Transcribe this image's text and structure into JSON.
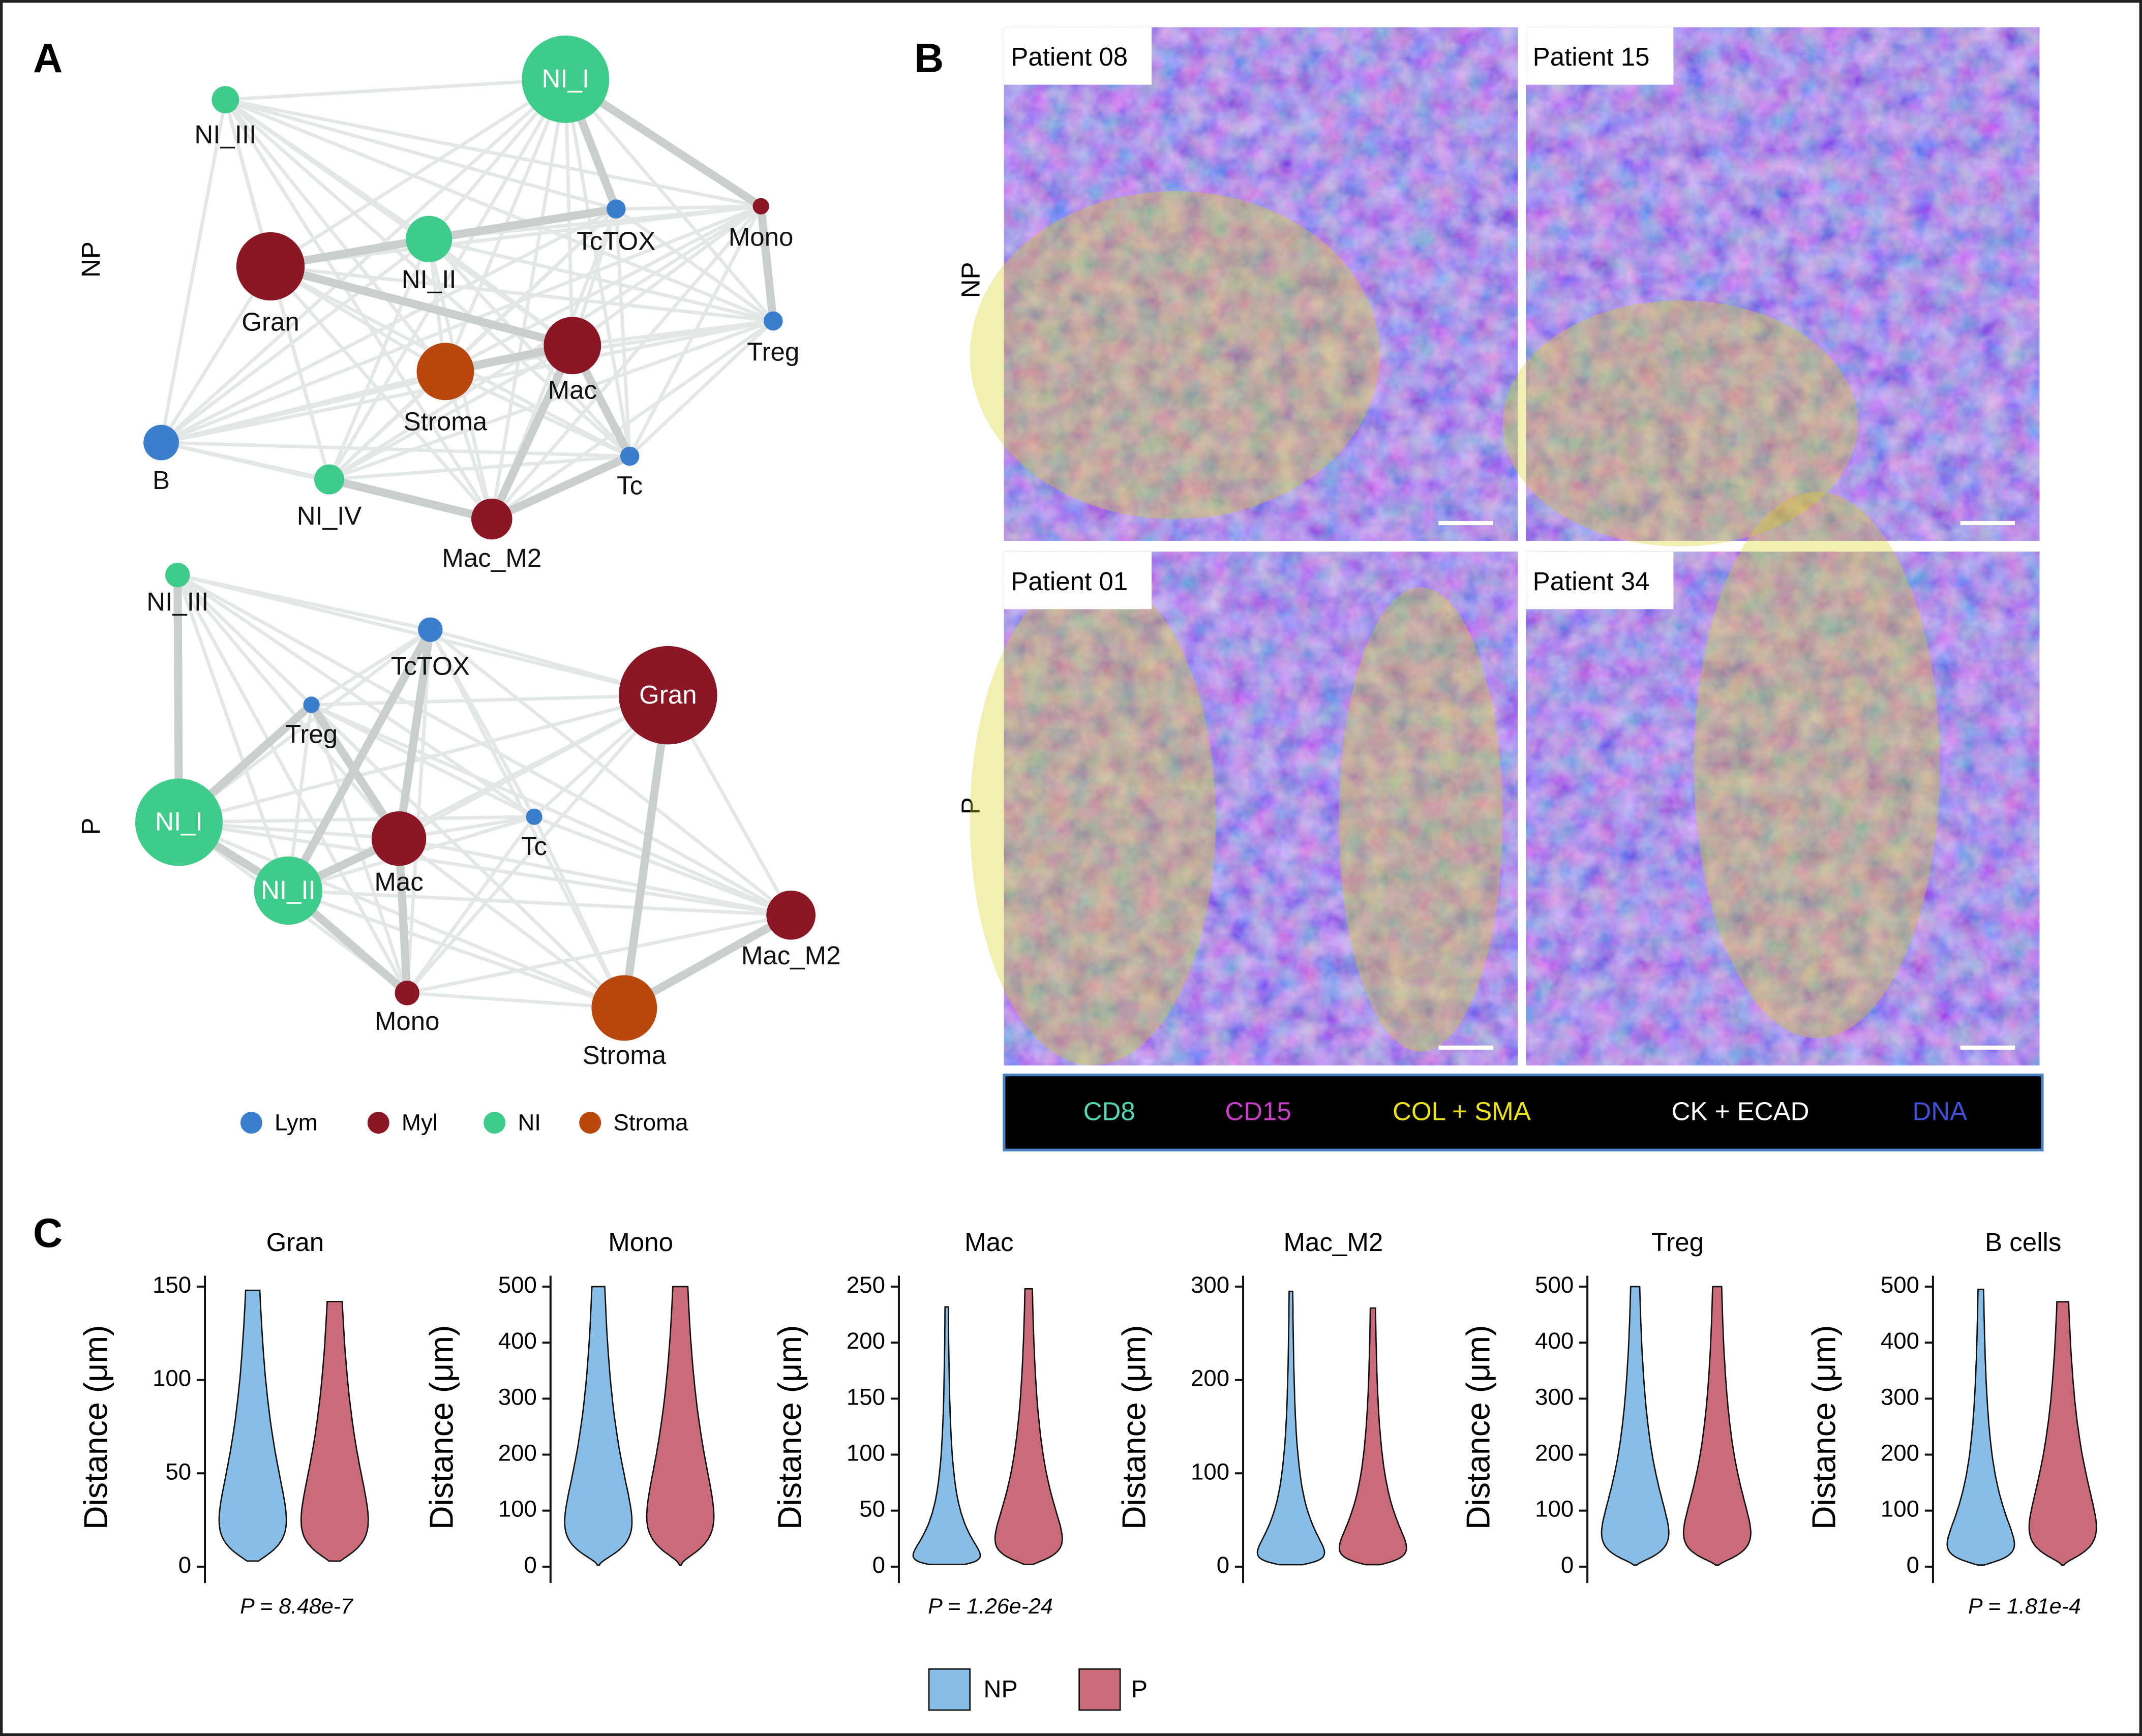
{
  "panels": {
    "a": "A",
    "b": "B",
    "c": "C"
  },
  "network": {
    "rows": [
      "NP",
      "P"
    ],
    "groups": [
      {
        "name": "Lym",
        "color": "#3b7fcc"
      },
      {
        "name": "Myl",
        "color": "#8a1626"
      },
      {
        "name": "NI",
        "color": "#3fcb8a"
      },
      {
        "name": "Stroma",
        "color": "#b8480d"
      }
    ],
    "graphs": [
      {
        "nodes": [
          {
            "label": "NI_I",
            "group": 2
          },
          {
            "label": "NI_III",
            "group": 2
          },
          {
            "label": "Gran",
            "group": 1
          },
          {
            "label": "NI_II",
            "group": 2
          },
          {
            "label": "TcTOX",
            "group": 0
          },
          {
            "label": "Mono",
            "group": 1
          },
          {
            "label": "Treg",
            "group": 0
          },
          {
            "label": "Stroma",
            "group": 3
          },
          {
            "label": "Mac",
            "group": 1
          },
          {
            "label": "B",
            "group": 0
          },
          {
            "label": "NI_IV",
            "group": 2
          },
          {
            "label": "Tc",
            "group": 0
          },
          {
            "label": "Mac_M2",
            "group": 1
          }
        ]
      },
      {
        "nodes": [
          {
            "label": "NI_III",
            "group": 2
          },
          {
            "label": "TcTOX",
            "group": 0
          },
          {
            "label": "Treg",
            "group": 0
          },
          {
            "label": "Gran",
            "group": 1
          },
          {
            "label": "NI_I",
            "group": 2
          },
          {
            "label": "Mac",
            "group": 1
          },
          {
            "label": "Tc",
            "group": 0
          },
          {
            "label": "NI_II",
            "group": 2
          },
          {
            "label": "Mac_M2",
            "group": 1
          },
          {
            "label": "Mono",
            "group": 1
          },
          {
            "label": "Stroma",
            "group": 3
          }
        ]
      }
    ]
  },
  "images": {
    "rows": [
      "NP",
      "P"
    ],
    "patients": [
      "Patient 08",
      "Patient 15",
      "Patient 01",
      "Patient 34"
    ],
    "channels": [
      {
        "name": "CD8",
        "color": "#52d6b4"
      },
      {
        "name": "CD15",
        "color": "#c63fc6"
      },
      {
        "name": "COL + SMA",
        "color": "#ece21c"
      },
      {
        "name": "CK + ECAD",
        "color": "#ffffff"
      },
      {
        "name": "DNA",
        "color": "#3f4fd6"
      }
    ]
  },
  "chart_data": [
    {
      "type": "violin",
      "title": "Gran",
      "y_label": "Distance (μm)",
      "ylim": [
        0,
        150
      ],
      "yticks": [
        0,
        50,
        100,
        150
      ],
      "p_value": "P = 8.48e-7",
      "series": [
        {
          "name": "NP",
          "color": "#88bde6",
          "min": 3,
          "median": 25,
          "max": 148
        },
        {
          "name": "P",
          "color": "#c96b78",
          "min": 3,
          "median": 25,
          "max": 142
        }
      ]
    },
    {
      "type": "violin",
      "title": "Mono",
      "y_label": "Distance (μm)",
      "ylim": [
        0,
        500
      ],
      "yticks": [
        0,
        100,
        200,
        300,
        400,
        500
      ],
      "series": [
        {
          "name": "NP",
          "color": "#88bde6",
          "min": 3,
          "median": 80,
          "max": 500
        },
        {
          "name": "P",
          "color": "#c96b78",
          "min": 3,
          "median": 90,
          "max": 500
        }
      ]
    },
    {
      "type": "violin",
      "title": "Mac",
      "y_label": "Distance (μm)",
      "ylim": [
        0,
        250
      ],
      "yticks": [
        0,
        50,
        100,
        150,
        200,
        250
      ],
      "p_value": "P = 1.26e-24",
      "series": [
        {
          "name": "NP",
          "color": "#88bde6",
          "min": 2,
          "median": 10,
          "max": 232
        },
        {
          "name": "P",
          "color": "#c96b78",
          "min": 2,
          "median": 25,
          "max": 248
        }
      ]
    },
    {
      "type": "violin",
      "title": "Mac_M2",
      "y_label": "Distance (μm)",
      "ylim": [
        0,
        300
      ],
      "yticks": [
        0,
        100,
        200,
        300
      ],
      "series": [
        {
          "name": "NP",
          "color": "#88bde6",
          "min": 2,
          "median": 15,
          "max": 295
        },
        {
          "name": "P",
          "color": "#c96b78",
          "min": 2,
          "median": 20,
          "max": 277
        }
      ]
    },
    {
      "type": "violin",
      "title": "Treg",
      "y_label": "Distance (μm)",
      "ylim": [
        0,
        500
      ],
      "yticks": [
        0,
        100,
        200,
        300,
        400,
        500
      ],
      "series": [
        {
          "name": "NP",
          "color": "#88bde6",
          "min": 3,
          "median": 60,
          "max": 500
        },
        {
          "name": "P",
          "color": "#c96b78",
          "min": 3,
          "median": 60,
          "max": 500
        }
      ]
    },
    {
      "type": "violin",
      "title": "B cells",
      "y_label": "Distance (μm)",
      "ylim": [
        0,
        500
      ],
      "yticks": [
        0,
        100,
        200,
        300,
        400,
        500
      ],
      "p_value": "P = 1.81e-4",
      "series": [
        {
          "name": "NP",
          "color": "#88bde6",
          "min": 3,
          "median": 40,
          "max": 495
        },
        {
          "name": "P",
          "color": "#c96b78",
          "min": 3,
          "median": 70,
          "max": 473
        }
      ]
    }
  ]
}
